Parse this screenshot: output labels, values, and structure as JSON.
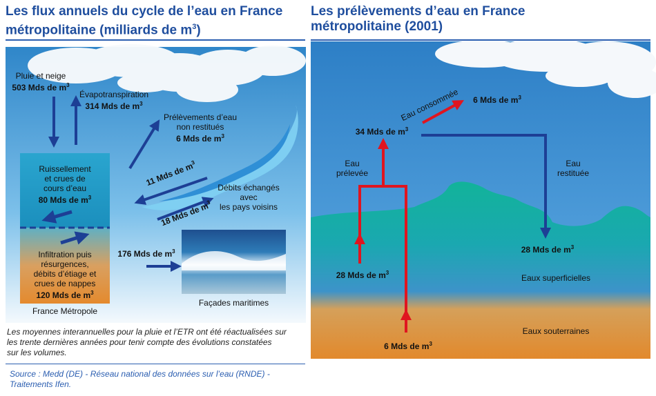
{
  "left": {
    "title_line1": "Les flux annuels du cycle de l’eau en France",
    "title_line2": "métropolitaine (milliards de m",
    "title_sup": "3",
    "title_close": ")",
    "rain_label": "Pluie et neige",
    "rain_value": "503 Mds de m",
    "etp_label": "Évapotranspiration",
    "etp_value": "314 Mds de m",
    "runoff_l1": "Ruissellement",
    "runoff_l2": "et crues de",
    "runoff_l3": "cours d’eau",
    "runoff_value": "80 Mds de m",
    "infil_l1": "Infiltration puis",
    "infil_l2": "résurgences,",
    "infil_l3": "débits d’étiage et",
    "infil_l4": "crues de nappes",
    "infil_value": "120 Mds de m",
    "france_label": "France Métropole",
    "withdraw_l1": "Prélèvements d’eau",
    "withdraw_l2": "non restitués",
    "withdraw_value": "6 Mds de m",
    "exch_out": "11 Mds de m",
    "exch_in": "18 Mds de m",
    "exch_l1": "Débits échangés",
    "exch_l2": "avec",
    "exch_l3": "les pays voisins",
    "sea_value": "176 Mds de m",
    "sea_label": "Façades maritimes",
    "note_l1": "Les moyennes interannuelles pour la pluie et l’ETR ont été réactualisées sur",
    "note_l2": "les trente dernières années pour tenir compte des évolutions constatées",
    "note_l3": "sur les volumes.",
    "source_l1": "Source : Medd (DE) - Réseau national des données sur l’eau (RNDE) -",
    "source_l2": "Traitements Ifen."
  },
  "right": {
    "title_line1": "Les prélèvements d’eau en France",
    "title_line2": "métropolitaine (2001)",
    "consumed_label": "Eau consommée",
    "consumed_value": "6 Mds de m",
    "total_value": "34 Mds de m",
    "withdrawn_l1": "Eau",
    "withdrawn_l2": "prélevée",
    "returned_l1": "Eau",
    "returned_l2": "restituée",
    "surface_in": "28 Mds de m",
    "surface_out": "28 Mds de m",
    "surface_label": "Eaux superficielles",
    "ground_label": "Eaux souterraines",
    "ground_in": "6 Mds de m"
  },
  "sup3": "3",
  "colors": {
    "title_blue": "#1f4e9e",
    "arrow_blue": "#1d3f95",
    "arrow_red": "#e0151f",
    "sky": "#3d8fd0",
    "sea_green": "#1fae9c",
    "ground_orange": "#e08c38"
  }
}
